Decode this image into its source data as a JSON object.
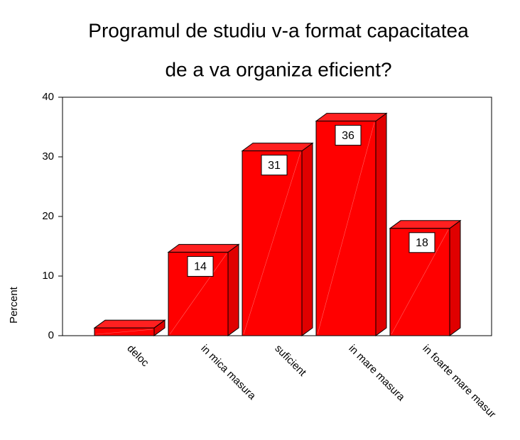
{
  "chart_data": {
    "type": "bar3d",
    "title": [
      "Programul de studiu v-a format capacitatea",
      "de a va organiza eficient?"
    ],
    "y_label": "Percent",
    "categories": [
      "deloc",
      "in mica masura",
      "suficient",
      "in mare masura",
      "in foarte mare masur"
    ],
    "values": [
      1.3,
      14,
      31,
      36,
      18
    ],
    "value_labels": [
      null,
      "14",
      "31",
      "36",
      "18"
    ],
    "color": "#ff0000",
    "ylim": [
      0,
      40
    ],
    "yticks": [
      0,
      10,
      20,
      30,
      40
    ]
  }
}
